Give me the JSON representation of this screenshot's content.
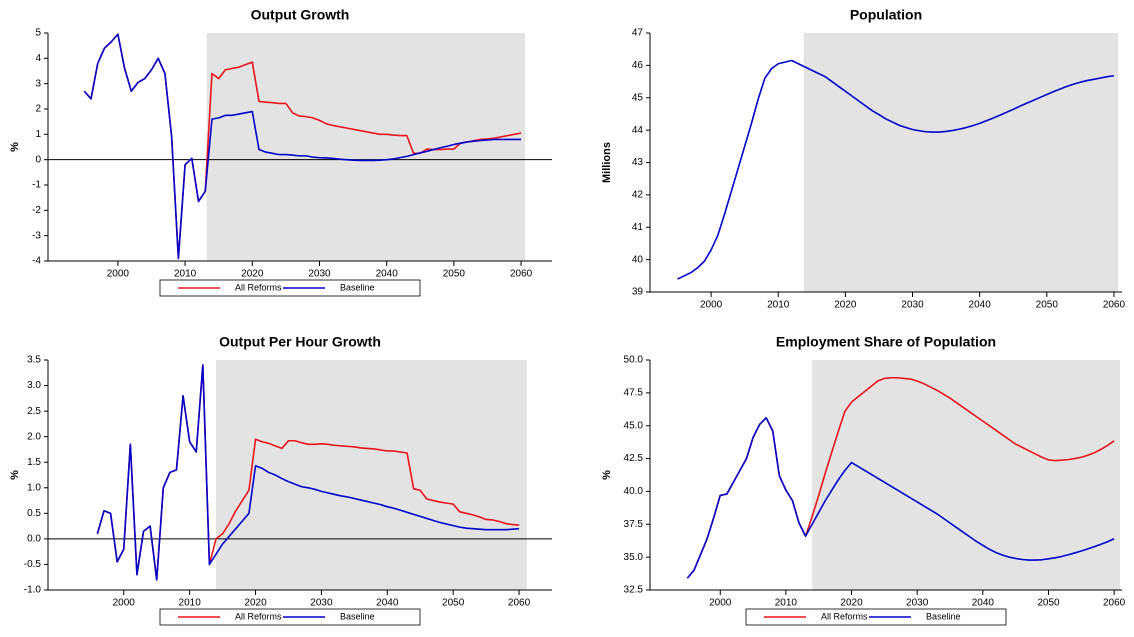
{
  "chart_data": [
    {
      "type": "line",
      "title": "Output Growth",
      "y_label": "%",
      "legend": "bottom",
      "zero_line": true,
      "shade_x": [
        2013.2,
        2060.6
      ],
      "xlim": [
        1989.6,
        2064.6
      ],
      "xticks": [
        2000,
        2010,
        2020,
        2030,
        2040,
        2050,
        2060
      ],
      "ylim": [
        -4,
        5
      ],
      "yticks": [
        -4,
        -3,
        -2,
        -1,
        0,
        1,
        2,
        3,
        4,
        5
      ],
      "x": [
        1995,
        1996,
        1997,
        1998,
        1999,
        2000,
        2001,
        2002,
        2003,
        2004,
        2005,
        2006,
        2007,
        2008,
        2009,
        2010,
        2011,
        2012,
        2013,
        2014,
        2015,
        2016,
        2017,
        2018,
        2019,
        2020,
        2021,
        2022,
        2023,
        2024,
        2025,
        2026,
        2027,
        2028,
        2029,
        2030,
        2031,
        2032,
        2033,
        2034,
        2035,
        2036,
        2037,
        2038,
        2039,
        2040,
        2041,
        2042,
        2043,
        2044,
        2045,
        2046,
        2047,
        2048,
        2049,
        2050,
        2051,
        2052,
        2053,
        2054,
        2055,
        2056,
        2057,
        2058,
        2059,
        2060
      ],
      "series": [
        {
          "name": "All Reforms",
          "color": "#e8141c",
          "values": [
            2.7,
            2.4,
            3.8,
            4.4,
            4.65,
            4.95,
            3.6,
            2.7,
            3.05,
            3.2,
            3.55,
            4.0,
            3.4,
            0.9,
            -3.9,
            -0.2,
            0.05,
            -1.65,
            -1.25,
            3.4,
            3.2,
            3.55,
            3.6,
            3.65,
            3.75,
            3.85,
            2.3,
            2.27,
            2.25,
            2.22,
            2.22,
            1.85,
            1.72,
            1.7,
            1.65,
            1.55,
            1.42,
            1.35,
            1.3,
            1.25,
            1.2,
            1.15,
            1.1,
            1.05,
            1.0,
            1.0,
            0.97,
            0.95,
            0.95,
            0.25,
            0.25,
            0.42,
            0.4,
            0.4,
            0.42,
            0.42,
            0.65,
            0.7,
            0.75,
            0.8,
            0.82,
            0.85,
            0.9,
            0.95,
            1.0,
            1.05
          ]
        },
        {
          "name": "Baseline",
          "color": "#0000cc",
          "values": [
            2.7,
            2.4,
            3.8,
            4.4,
            4.65,
            4.95,
            3.6,
            2.7,
            3.05,
            3.2,
            3.55,
            4.0,
            3.4,
            0.9,
            -3.9,
            -0.2,
            0.05,
            -1.65,
            -1.25,
            1.6,
            1.65,
            1.75,
            1.75,
            1.8,
            1.85,
            1.9,
            0.4,
            0.3,
            0.25,
            0.2,
            0.2,
            0.18,
            0.15,
            0.15,
            0.1,
            0.08,
            0.07,
            0.05,
            0.02,
            0,
            -0.02,
            -0.03,
            -0.03,
            -0.03,
            -0.02,
            0,
            0.03,
            0.08,
            0.13,
            0.2,
            0.27,
            0.33,
            0.4,
            0.47,
            0.53,
            0.6,
            0.65,
            0.7,
            0.73,
            0.76,
            0.78,
            0.8,
            0.8,
            0.8,
            0.8,
            0.8
          ]
        }
      ]
    },
    {
      "type": "line",
      "title": "Population",
      "y_label": "Millions",
      "shade_x": [
        2013.8,
        2060.6
      ],
      "xlim": [
        1990.9,
        2061.2
      ],
      "xticks": [
        2000,
        2010,
        2020,
        2030,
        2040,
        2050,
        2060
      ],
      "ylim": [
        39,
        47
      ],
      "yticks": [
        39,
        40,
        41,
        42,
        43,
        44,
        45,
        46,
        47
      ],
      "x": [
        1995,
        1996,
        1997,
        1998,
        1999,
        2000,
        2001,
        2002,
        2003,
        2004,
        2005,
        2006,
        2007,
        2008,
        2009,
        2010,
        2011,
        2012,
        2013,
        2014,
        2015,
        2016,
        2017,
        2018,
        2019,
        2020,
        2021,
        2022,
        2023,
        2024,
        2025,
        2026,
        2027,
        2028,
        2029,
        2030,
        2031,
        2032,
        2033,
        2034,
        2035,
        2036,
        2037,
        2038,
        2039,
        2040,
        2041,
        2042,
        2043,
        2044,
        2045,
        2046,
        2047,
        2048,
        2049,
        2050,
        2051,
        2052,
        2053,
        2054,
        2055,
        2056,
        2057,
        2058,
        2059,
        2060
      ],
      "series": [
        {
          "color": "#0000cc",
          "values": [
            39.4,
            39.5,
            39.6,
            39.75,
            39.95,
            40.3,
            40.75,
            41.4,
            42.1,
            42.8,
            43.5,
            44.2,
            44.95,
            45.6,
            45.9,
            46.05,
            46.1,
            46.15,
            46.05,
            45.95,
            45.85,
            45.75,
            45.65,
            45.5,
            45.35,
            45.2,
            45.05,
            44.9,
            44.75,
            44.6,
            44.48,
            44.35,
            44.25,
            44.15,
            44.08,
            44.02,
            43.98,
            43.95,
            43.94,
            43.94,
            43.96,
            43.99,
            44.03,
            44.08,
            44.14,
            44.21,
            44.29,
            44.37,
            44.46,
            44.55,
            44.64,
            44.74,
            44.83,
            44.92,
            45.01,
            45.1,
            45.19,
            45.27,
            45.35,
            45.42,
            45.48,
            45.53,
            45.57,
            45.61,
            45.65,
            45.68
          ]
        }
      ]
    },
    {
      "type": "line",
      "title": "Output Per Hour Growth",
      "y_label": "%",
      "legend": "bottom",
      "zero_line": true,
      "shade_x": [
        2014.0,
        2061.2
      ],
      "xlim": [
        1988.5,
        2065
      ],
      "xticks": [
        2000,
        2010,
        2020,
        2030,
        2040,
        2050,
        2060
      ],
      "ylim": [
        -1,
        3.5
      ],
      "yticks": [
        {
          "value": -1,
          "label": "-1.0"
        },
        -0.5,
        {
          "value": 0,
          "label": "0.0"
        },
        0.5,
        {
          "value": 1,
          "label": "1.0"
        },
        1.5,
        {
          "value": 2,
          "label": "2.0"
        },
        2.5,
        {
          "value": 3,
          "label": "3.0"
        },
        3.5
      ],
      "x": [
        1996,
        1997,
        1998,
        1999,
        2000,
        2001,
        2002,
        2003,
        2004,
        2005,
        2006,
        2007,
        2008,
        2009,
        2010,
        2011,
        2012,
        2013,
        2014,
        2015,
        2016,
        2017,
        2018,
        2019,
        2020,
        2021,
        2022,
        2023,
        2024,
        2025,
        2026,
        2027,
        2028,
        2029,
        2030,
        2031,
        2032,
        2033,
        2034,
        2035,
        2036,
        2037,
        2038,
        2039,
        2040,
        2041,
        2042,
        2043,
        2044,
        2045,
        2046,
        2047,
        2048,
        2049,
        2050,
        2051,
        2052,
        2053,
        2054,
        2055,
        2056,
        2057,
        2058,
        2059,
        2060
      ],
      "series": [
        {
          "name": "All Reforms",
          "color": "#e8141c",
          "values": [
            0.1,
            0.55,
            0.5,
            -0.45,
            -0.2,
            1.85,
            -0.7,
            0.15,
            0.25,
            -0.8,
            1.0,
            1.3,
            1.35,
            2.8,
            1.9,
            1.7,
            3.4,
            -0.5,
            0.0,
            0.1,
            0.3,
            0.55,
            0.75,
            0.95,
            1.95,
            1.9,
            1.87,
            1.82,
            1.77,
            1.92,
            1.92,
            1.88,
            1.85,
            1.85,
            1.86,
            1.85,
            1.83,
            1.82,
            1.81,
            1.8,
            1.78,
            1.77,
            1.76,
            1.74,
            1.72,
            1.72,
            1.7,
            1.68,
            0.98,
            0.95,
            0.78,
            0.75,
            0.72,
            0.7,
            0.68,
            0.53,
            0.5,
            0.47,
            0.43,
            0.38,
            0.37,
            0.34,
            0.3,
            0.28,
            0.27
          ]
        },
        {
          "name": "Baseline",
          "color": "#0000cc",
          "values": [
            0.1,
            0.55,
            0.5,
            -0.45,
            -0.2,
            1.85,
            -0.7,
            0.15,
            0.25,
            -0.8,
            1.0,
            1.3,
            1.35,
            2.8,
            1.9,
            1.7,
            3.4,
            -0.5,
            -0.3,
            -0.1,
            0.05,
            0.2,
            0.35,
            0.5,
            1.43,
            1.38,
            1.3,
            1.25,
            1.18,
            1.12,
            1.07,
            1.02,
            1.0,
            0.97,
            0.93,
            0.9,
            0.87,
            0.84,
            0.82,
            0.79,
            0.76,
            0.73,
            0.7,
            0.67,
            0.63,
            0.6,
            0.56,
            0.52,
            0.48,
            0.44,
            0.4,
            0.36,
            0.32,
            0.29,
            0.26,
            0.23,
            0.21,
            0.2,
            0.19,
            0.18,
            0.18,
            0.18,
            0.18,
            0.19,
            0.2
          ]
        }
      ]
    },
    {
      "type": "line",
      "title": "Employment Share of Population",
      "y_label": "%",
      "legend": "bottom",
      "shade_x": [
        2014.0,
        2060.9
      ],
      "xlim": [
        1989.3,
        2061.2
      ],
      "xticks": [
        2000,
        2010,
        2020,
        2030,
        2040,
        2050,
        2060
      ],
      "ylim": [
        32.5,
        50
      ],
      "yticks": [
        32.5,
        {
          "value": 35,
          "label": "35.0"
        },
        37.5,
        {
          "value": 40,
          "label": "40.0"
        },
        42.5,
        {
          "value": 45,
          "label": "45.0"
        },
        47.5,
        {
          "value": 50,
          "label": "50.0"
        }
      ],
      "x": [
        1995,
        1996,
        1997,
        1998,
        1999,
        2000,
        2001,
        2002,
        2003,
        2004,
        2005,
        2006,
        2007,
        2008,
        2009,
        2010,
        2011,
        2012,
        2013,
        2014,
        2015,
        2016,
        2017,
        2018,
        2019,
        2020,
        2021,
        2022,
        2023,
        2024,
        2025,
        2026,
        2027,
        2028,
        2029,
        2030,
        2031,
        2032,
        2033,
        2034,
        2035,
        2036,
        2037,
        2038,
        2039,
        2040,
        2041,
        2042,
        2043,
        2044,
        2045,
        2046,
        2047,
        2048,
        2049,
        2050,
        2051,
        2052,
        2053,
        2054,
        2055,
        2056,
        2057,
        2058,
        2059,
        2060
      ],
      "series": [
        {
          "name": "All Reforms",
          "color": "#e8141c",
          "values": [
            33.4,
            34.0,
            35.2,
            36.4,
            38.0,
            39.7,
            39.8,
            40.7,
            41.6,
            42.5,
            44.1,
            45.1,
            45.6,
            44.6,
            41.2,
            40.1,
            39.3,
            37.6,
            36.6,
            38.1,
            39.7,
            41.4,
            43.0,
            44.6,
            46.1,
            46.8,
            47.2,
            47.6,
            48.0,
            48.4,
            48.6,
            48.65,
            48.65,
            48.6,
            48.55,
            48.4,
            48.2,
            47.95,
            47.7,
            47.4,
            47.1,
            46.75,
            46.4,
            46.05,
            45.7,
            45.35,
            45.0,
            44.65,
            44.3,
            43.95,
            43.6,
            43.35,
            43.1,
            42.85,
            42.6,
            42.4,
            42.35,
            42.38,
            42.42,
            42.5,
            42.6,
            42.75,
            42.95,
            43.2,
            43.5,
            43.85
          ]
        },
        {
          "name": "Baseline",
          "color": "#0000cc",
          "values": [
            33.4,
            34.0,
            35.2,
            36.4,
            38.0,
            39.7,
            39.8,
            40.7,
            41.6,
            42.5,
            44.1,
            45.1,
            45.6,
            44.6,
            41.2,
            40.1,
            39.3,
            37.6,
            36.6,
            37.5,
            38.4,
            39.3,
            40.1,
            40.9,
            41.6,
            42.2,
            41.9,
            41.6,
            41.3,
            41.0,
            40.7,
            40.4,
            40.1,
            39.8,
            39.5,
            39.2,
            38.9,
            38.6,
            38.3,
            37.95,
            37.6,
            37.25,
            36.9,
            36.55,
            36.2,
            35.9,
            35.6,
            35.35,
            35.15,
            35.0,
            34.9,
            34.82,
            34.78,
            34.78,
            34.8,
            34.87,
            34.95,
            35.05,
            35.18,
            35.32,
            35.47,
            35.63,
            35.8,
            35.98,
            36.17,
            36.4
          ]
        }
      ]
    }
  ]
}
